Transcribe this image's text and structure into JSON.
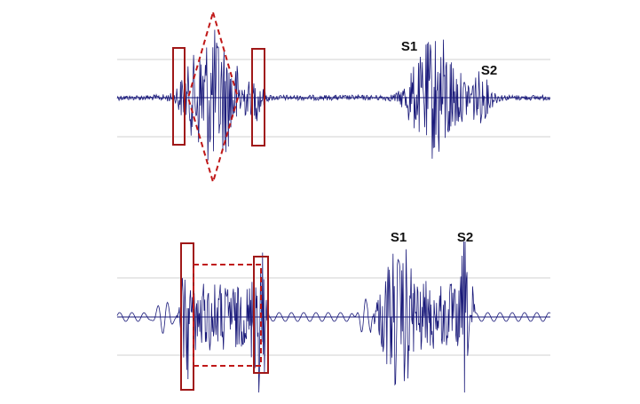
{
  "panels": [
    {
      "labels": [
        "S1",
        "S2"
      ]
    },
    {
      "labels": [
        "S1",
        "S2"
      ]
    }
  ]
}
